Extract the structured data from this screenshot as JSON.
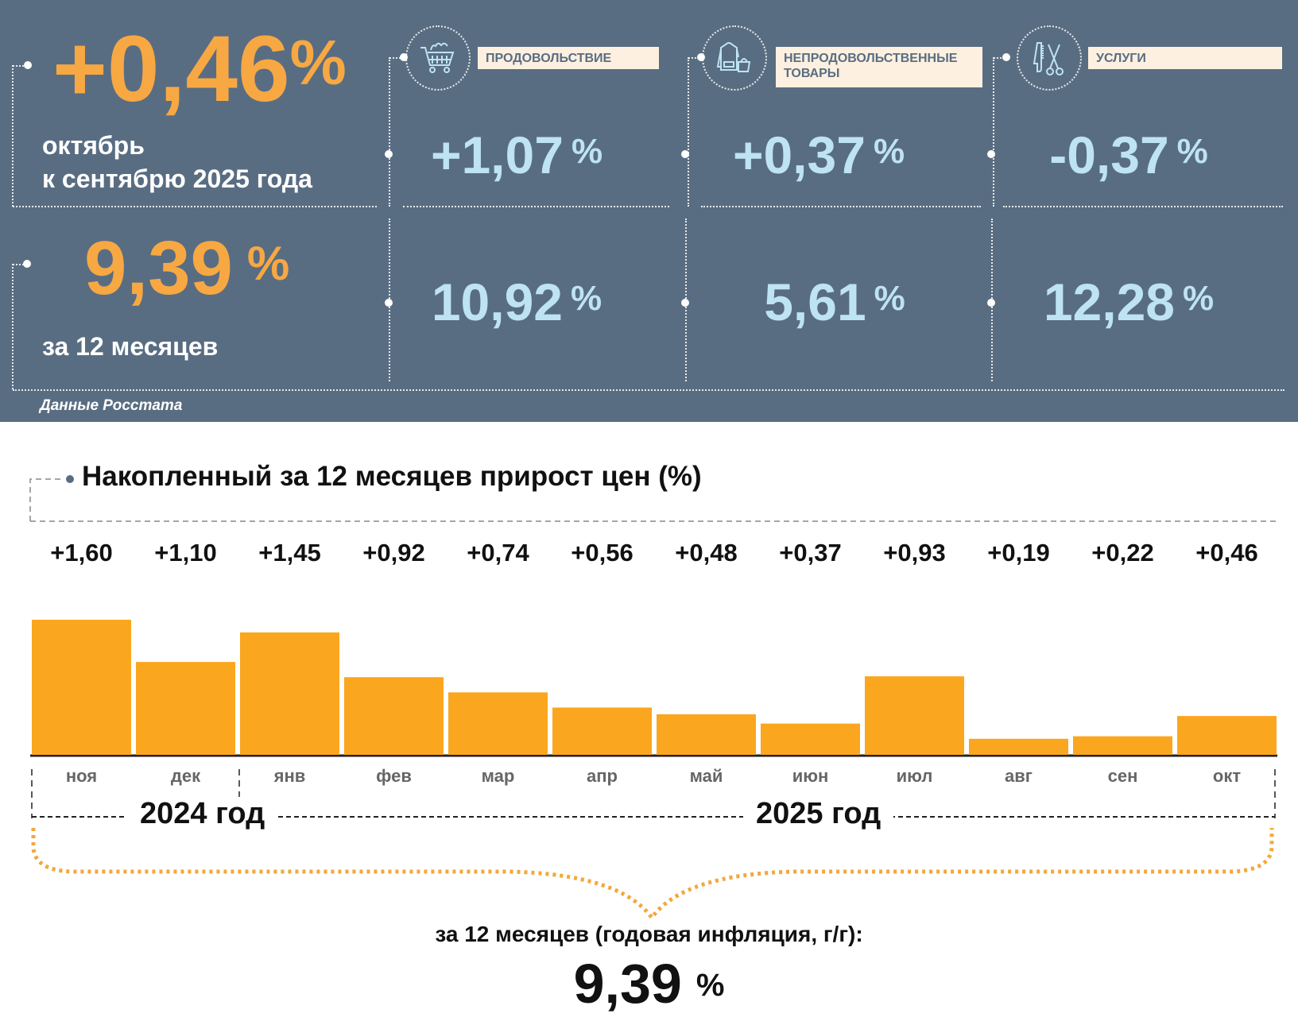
{
  "summary": {
    "monthly_value": "+0,46",
    "monthly_pct": "%",
    "monthly_caption_line1": "октябрь",
    "monthly_caption_line2": "к сентябрю 2025 года",
    "annual_value": "9,39",
    "annual_pct": "%",
    "annual_caption": "за 12 месяцев",
    "source": "Данные Росстата"
  },
  "categories": [
    {
      "name": "ПРОДОВОЛЬСТВИЕ",
      "icon": "shopping-cart-icon",
      "monthly": "+1,07",
      "annual": "10,92",
      "pct": "%"
    },
    {
      "name_line1": "НЕПРОДОВОЛЬСТВЕННЫЕ",
      "name_line2": "ТОВАРЫ",
      "icon": "clothing-bag-icon",
      "monthly": "+0,37",
      "annual": "5,61",
      "pct": "%"
    },
    {
      "name": "УСЛУГИ",
      "icon": "comb-scissors-icon",
      "monthly": "-0,37",
      "annual": "12,28",
      "pct": "%"
    }
  ],
  "colors": {
    "panel": "#596D82",
    "orange": "#F7A843",
    "bar": "#FBA61F",
    "light_blue": "#BEE3F3",
    "label_bg": "#FDF0E0"
  },
  "chart_data": {
    "type": "bar",
    "title": "Накопленный за 12 месяцев прирост цен (%)",
    "categories": [
      "ноя",
      "дек",
      "янв",
      "фев",
      "мар",
      "апр",
      "май",
      "июн",
      "июл",
      "авг",
      "сен",
      "окт"
    ],
    "values": [
      1.6,
      1.1,
      1.45,
      0.92,
      0.74,
      0.56,
      0.48,
      0.37,
      0.93,
      0.19,
      0.22,
      0.46
    ],
    "value_labels": [
      "+1,60",
      "+1,10",
      "+1,45",
      "+0,92",
      "+0,74",
      "+0,56",
      "+0,48",
      "+0,37",
      "+0,93",
      "+0,19",
      "+0,22",
      "+0,46"
    ],
    "year_groups": [
      "2024 год",
      "2025 год"
    ],
    "xlabel": "",
    "ylabel": "",
    "ylim": [
      0,
      1.6
    ],
    "grid": false,
    "total_caption": "за 12 месяцев (годовая инфляция, г/г):",
    "total_value": "9,39",
    "total_pct": "%"
  }
}
